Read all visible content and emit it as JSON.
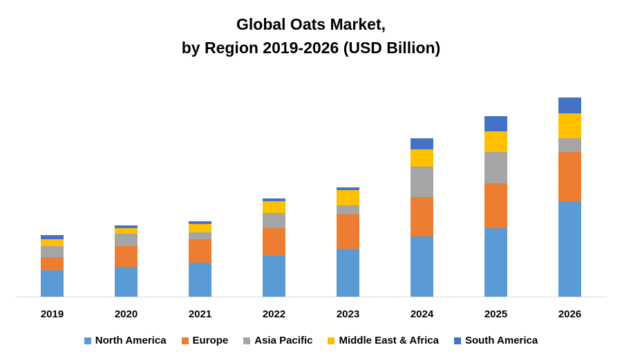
{
  "chart_data": {
    "type": "bar",
    "stacked": true,
    "title": "Global Oats Market,",
    "subtitle": "by Region 2019-2026 (USD Billion)",
    "categories": [
      "2019",
      "2020",
      "2021",
      "2022",
      "2023",
      "2024",
      "2025",
      "2026"
    ],
    "series": [
      {
        "name": "North America",
        "color": "#5B9BD5",
        "values": [
          38,
          43,
          49,
          59,
          69,
          87,
          99,
          138
        ]
      },
      {
        "name": "Europe",
        "color": "#ED7D31",
        "values": [
          19,
          30,
          34,
          40,
          50,
          57,
          65,
          71
        ]
      },
      {
        "name": "Asia Pacific",
        "color": "#A5A5A5",
        "values": [
          16,
          18,
          10,
          22,
          13,
          44,
          45,
          20
        ]
      },
      {
        "name": "Middle East & Africa",
        "color": "#FFC000",
        "values": [
          10,
          8,
          12,
          17,
          22,
          25,
          30,
          36
        ]
      },
      {
        "name": "South America",
        "color": "#4472C4",
        "values": [
          6,
          4,
          4,
          4,
          4,
          16,
          22,
          23
        ]
      }
    ],
    "ylim": [
      0,
      300
    ],
    "xlabel": "",
    "ylabel": "",
    "grid": false,
    "legend_position": "bottom"
  }
}
